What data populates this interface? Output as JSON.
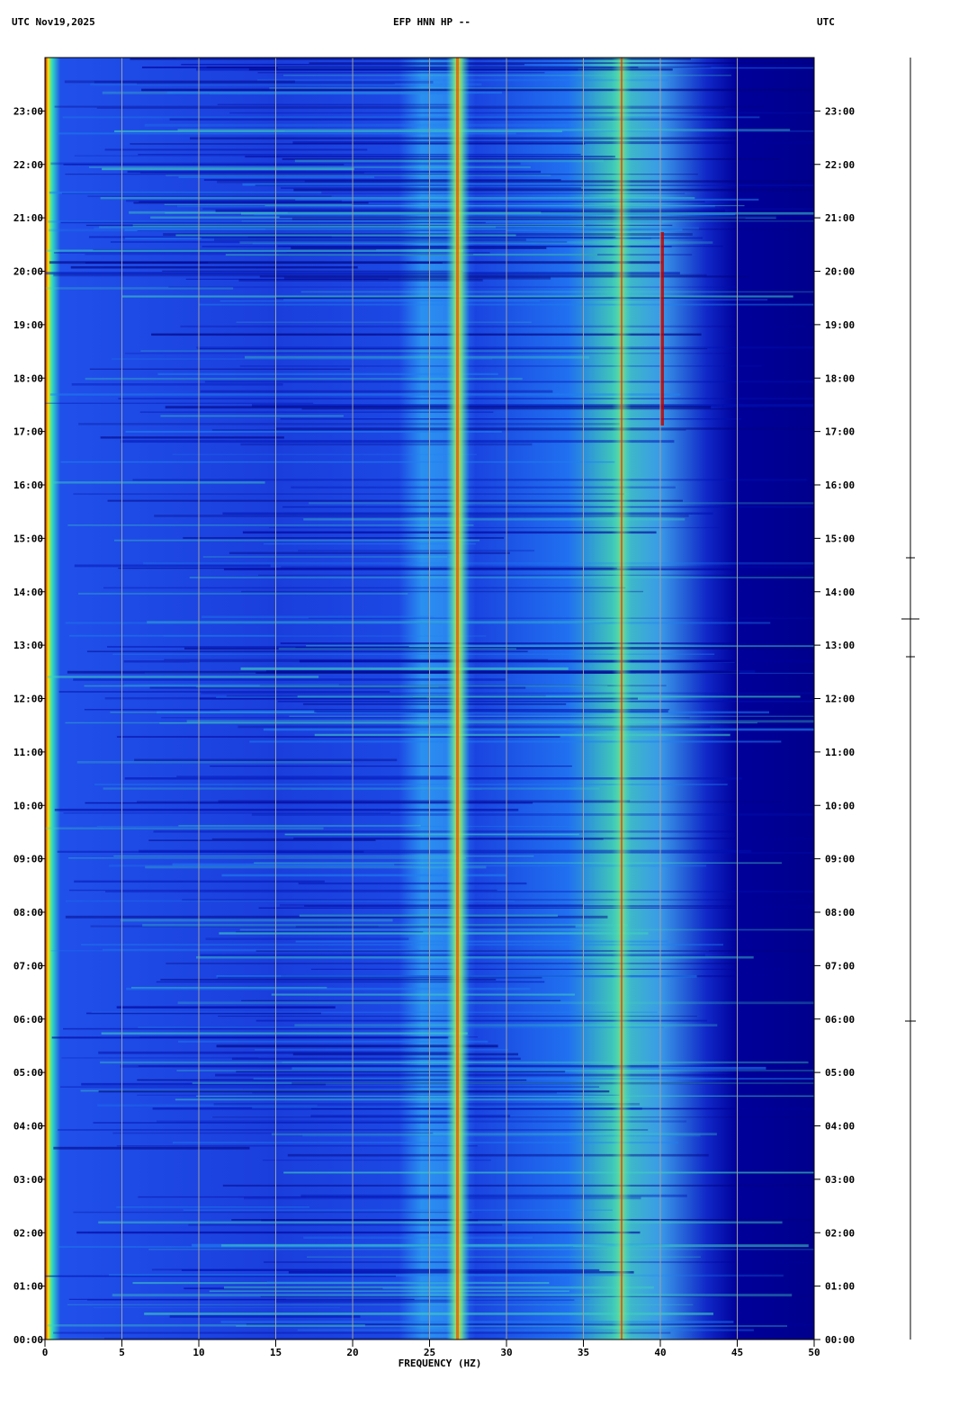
{
  "chart_data": {
    "type": "spectrogram",
    "title": "EFP HNN HP --",
    "header_left": "UTC  Nov19,2025",
    "header_right": "UTC",
    "x_label": "FREQUENCY (HZ)",
    "xlim": [
      0,
      50
    ],
    "xticks": [
      0,
      5,
      10,
      15,
      20,
      25,
      30,
      35,
      40,
      45,
      50
    ],
    "ylim": [
      0,
      24
    ],
    "yticks": [
      {
        "value": 0,
        "label": "00:00"
      },
      {
        "value": 1,
        "label": "01:00"
      },
      {
        "value": 2,
        "label": "02:00"
      },
      {
        "value": 3,
        "label": "03:00"
      },
      {
        "value": 4,
        "label": "04:00"
      },
      {
        "value": 5,
        "label": "05:00"
      },
      {
        "value": 6,
        "label": "06:00"
      },
      {
        "value": 7,
        "label": "07:00"
      },
      {
        "value": 8,
        "label": "08:00"
      },
      {
        "value": 9,
        "label": "09:00"
      },
      {
        "value": 10,
        "label": "10:00"
      },
      {
        "value": 11,
        "label": "11:00"
      },
      {
        "value": 12,
        "label": "12:00"
      },
      {
        "value": 13,
        "label": "13:00"
      },
      {
        "value": 14,
        "label": "14:00"
      },
      {
        "value": 15,
        "label": "15:00"
      },
      {
        "value": 16,
        "label": "16:00"
      },
      {
        "value": 17,
        "label": "17:00"
      },
      {
        "value": 18,
        "label": "18:00"
      },
      {
        "value": 19,
        "label": "19:00"
      },
      {
        "value": 20,
        "label": "20:00"
      },
      {
        "value": 21,
        "label": "21:00"
      },
      {
        "value": 22,
        "label": "22:00"
      },
      {
        "value": 23,
        "label": "23:00"
      }
    ],
    "grid": true
  }
}
